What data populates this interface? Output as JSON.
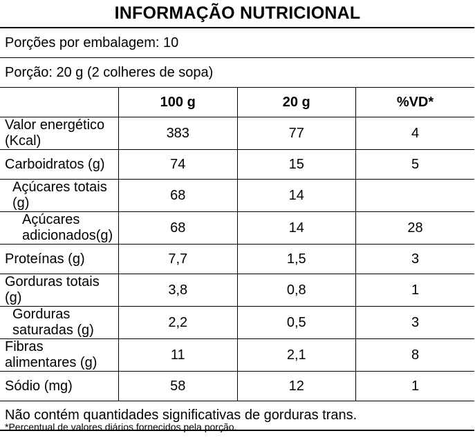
{
  "title": "INFORMAÇÃO NUTRICIONAL",
  "servings_per_package": "Porções por embalagem: 10",
  "serving_size": "Porção: 20 g (2 colheres de sopa)",
  "columns": [
    "",
    "100 g",
    "20 g",
    "%VD*"
  ],
  "rows": [
    {
      "name": "Valor energético (Kcal)",
      "v100": "383",
      "v20": "77",
      "vd": "4",
      "indent": 0
    },
    {
      "name": "Carboidratos (g)",
      "v100": "74",
      "v20": "15",
      "vd": "5",
      "indent": 0
    },
    {
      "name": "Açúcares totais (g)",
      "v100": "68",
      "v20": "14",
      "vd": "",
      "indent": 1
    },
    {
      "name": "Açúcares adicionados(g)",
      "v100": "68",
      "v20": "14",
      "vd": "28",
      "indent": 2
    },
    {
      "name": "Proteínas (g)",
      "v100": "7,7",
      "v20": "1,5",
      "vd": "3",
      "indent": 0
    },
    {
      "name": "Gorduras totais (g)",
      "v100": "3,8",
      "v20": "0,8",
      "vd": "1",
      "indent": 0
    },
    {
      "name": "Gorduras saturadas (g)",
      "v100": "2,2",
      "v20": "0,5",
      "vd": "3",
      "indent": 1
    },
    {
      "name": "Fibras alimentares (g)",
      "v100": "11",
      "v20": "2,1",
      "vd": "8",
      "indent": 0
    },
    {
      "name": "Sódio (mg)",
      "v100": "58",
      "v20": "12",
      "vd": "1",
      "indent": 0
    }
  ],
  "trans_note": "Não contém quantidades significativas de gorduras trans.",
  "footnote": "*Percentual de valores diários fornecidos pela porção."
}
